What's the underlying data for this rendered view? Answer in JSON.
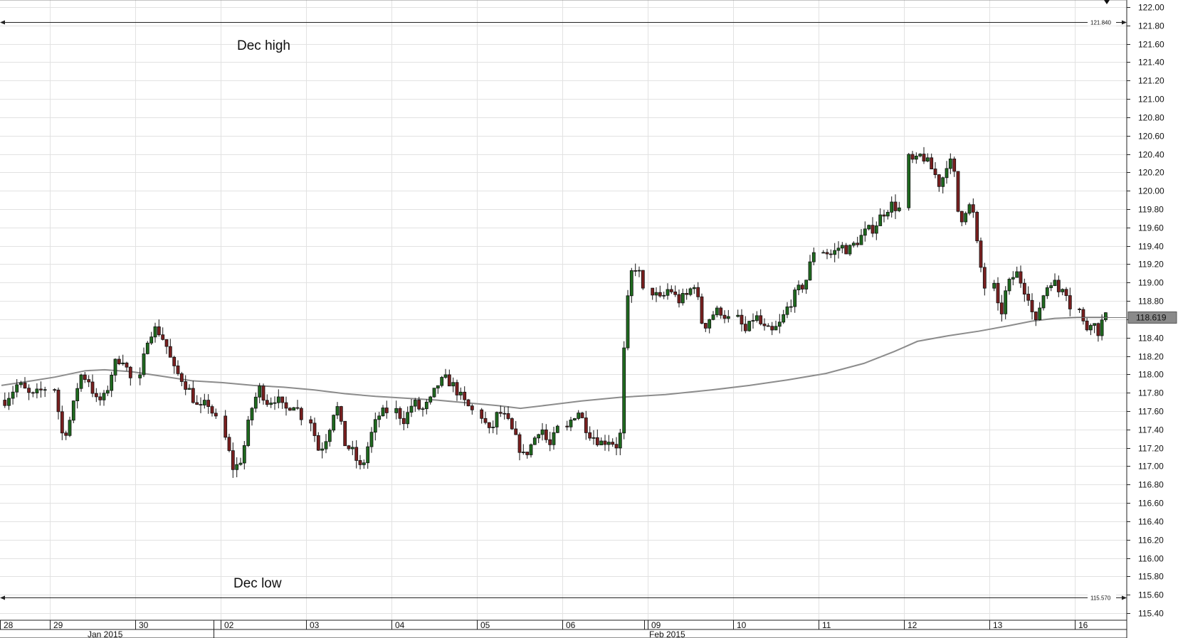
{
  "chart_data": {
    "type": "candlestick",
    "ylim": [
      115.3,
      122.06
    ],
    "y_ticks": [
      "115.40",
      "115.60",
      "115.80",
      "116.00",
      "116.20",
      "116.40",
      "116.60",
      "116.80",
      "117.00",
      "117.20",
      "117.40",
      "117.60",
      "117.80",
      "118.00",
      "118.20",
      "118.40",
      "118.60",
      "118.80",
      "119.00",
      "119.20",
      "119.40",
      "119.60",
      "119.80",
      "120.00",
      "120.20",
      "120.40",
      "120.60",
      "120.80",
      "121.00",
      "121.20",
      "121.40",
      "121.60",
      "121.80",
      "122.00"
    ],
    "day_labels": [
      "28",
      "29",
      "30",
      "02",
      "03",
      "04",
      "05",
      "06",
      "09",
      "10",
      "11",
      "12",
      "13",
      "16"
    ],
    "month_labels": [
      "Jan 2015",
      "Feb 2015"
    ],
    "levels": [
      {
        "name": "Dec high",
        "value": 121.84,
        "value_label": "121.840"
      },
      {
        "name": "Dec low",
        "value": 115.57,
        "value_label": "115.570"
      }
    ],
    "last_price": {
      "value": 118.619,
      "label": "118.619"
    },
    "annotations": [
      "Dec high",
      "Dec low"
    ],
    "moving_average": [
      [
        0,
        117.88
      ],
      [
        8,
        117.93
      ],
      [
        14,
        117.97
      ],
      [
        22,
        118.04
      ],
      [
        27,
        118.05
      ],
      [
        34,
        118.03
      ],
      [
        42,
        117.98
      ],
      [
        50,
        117.93
      ],
      [
        58,
        117.91
      ],
      [
        66,
        117.88
      ],
      [
        74,
        117.86
      ],
      [
        82,
        117.83
      ],
      [
        90,
        117.79
      ],
      [
        98,
        117.76
      ],
      [
        106,
        117.74
      ],
      [
        114,
        117.72
      ],
      [
        122,
        117.69
      ],
      [
        130,
        117.66
      ],
      [
        136,
        117.63
      ],
      [
        144,
        117.67
      ],
      [
        152,
        117.71
      ],
      [
        162,
        117.75
      ],
      [
        174,
        117.78
      ],
      [
        186,
        117.83
      ],
      [
        196,
        117.88
      ],
      [
        206,
        117.94
      ],
      [
        216,
        118.01
      ],
      [
        226,
        118.12
      ],
      [
        234,
        118.25
      ],
      [
        240,
        118.36
      ],
      [
        248,
        118.42
      ],
      [
        256,
        118.47
      ],
      [
        264,
        118.53
      ],
      [
        270,
        118.58
      ],
      [
        276,
        118.61
      ],
      [
        282,
        118.62
      ],
      [
        290,
        118.62
      ]
    ],
    "days": [
      {
        "label": "28",
        "path": [
          117.72,
          117.9,
          117.75,
          117.85
        ]
      },
      {
        "label": "29",
        "path": [
          117.85,
          117.3,
          117.55,
          118.0,
          117.95,
          117.7,
          117.75,
          118.1,
          118.2,
          117.95
        ]
      },
      {
        "label": "30",
        "path": [
          117.95,
          118.45,
          118.5,
          118.35,
          118.05,
          117.95,
          117.8,
          117.6,
          117.7,
          117.5
        ]
      },
      {
        "label": "02",
        "path": [
          117.3,
          116.95,
          117.1,
          117.6,
          117.85,
          117.7,
          117.75,
          117.6,
          117.7,
          117.55
        ]
      },
      {
        "label": "03",
        "path": [
          117.5,
          117.15,
          117.35,
          117.7,
          117.25,
          117.15,
          116.95,
          117.3,
          117.55,
          117.6
        ]
      },
      {
        "label": "04",
        "path": [
          117.6,
          117.5,
          117.7,
          117.6,
          117.7,
          117.9,
          117.95,
          117.85,
          117.7,
          117.6
        ]
      },
      {
        "label": "05",
        "path": [
          117.55,
          117.35,
          117.6,
          117.5,
          117.3,
          117.1,
          117.25,
          117.45,
          117.2,
          117.4
        ]
      },
      {
        "label": "06",
        "path": [
          117.4,
          117.55,
          117.6,
          117.45,
          117.35,
          117.3,
          117.25,
          117.3,
          117.25,
          117.2,
          118.6,
          119.1,
          119.2,
          118.9
        ]
      },
      {
        "label": "09",
        "path": [
          118.9,
          118.8,
          118.95,
          118.8,
          118.85,
          119.0,
          118.5,
          118.65,
          118.7,
          118.6
        ]
      },
      {
        "label": "10",
        "path": [
          118.6,
          118.45,
          118.65,
          118.5,
          118.45,
          118.55,
          118.75,
          118.9,
          119.0,
          119.35
        ]
      },
      {
        "label": "11",
        "path": [
          119.35,
          119.3,
          119.4,
          119.35,
          119.45,
          119.55,
          119.6,
          119.75,
          119.85,
          119.8
        ]
      },
      {
        "label": "12",
        "path": [
          120.35,
          120.3,
          120.4,
          120.3,
          120.2,
          120.05,
          120.3,
          120.3,
          119.65,
          119.8,
          119.85,
          119.3,
          118.95
        ]
      },
      {
        "label": "13",
        "path": [
          118.95,
          118.6,
          118.9,
          119.05,
          119.1,
          118.95,
          118.85,
          118.5,
          118.8,
          118.95,
          119.05,
          118.9,
          119.0,
          118.75
        ]
      },
      {
        "label": "16",
        "path": [
          118.7,
          118.6,
          118.45,
          118.55,
          118.6,
          118.55,
          118.45,
          118.5,
          118.6,
          118.619
        ]
      }
    ]
  }
}
